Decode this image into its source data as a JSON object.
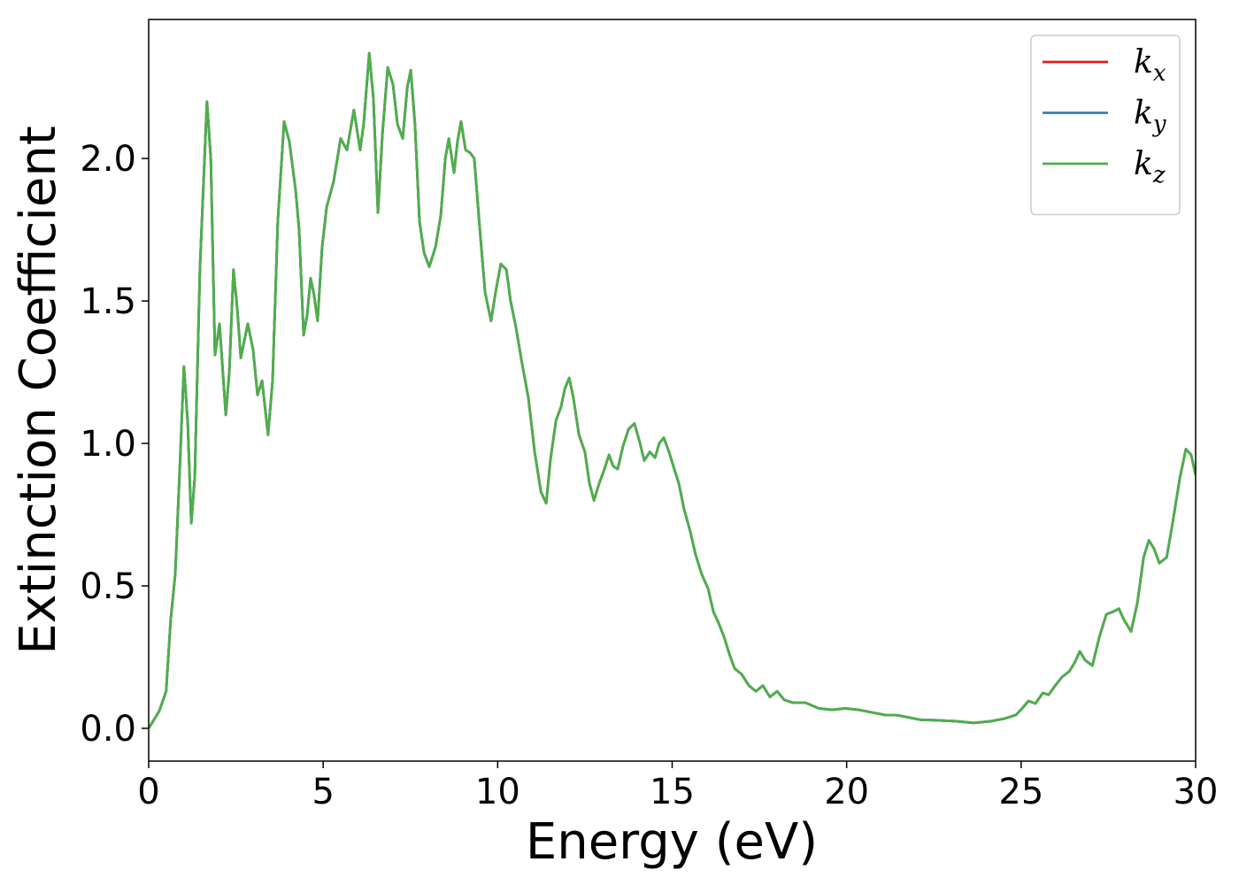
{
  "chart_data": {
    "type": "line",
    "xlabel": "Energy (eV)",
    "ylabel": "Extinction Coefficient",
    "xlim": [
      0,
      30
    ],
    "ylim": [
      -0.115,
      2.488
    ],
    "xticks": [
      0,
      5,
      10,
      15,
      20,
      25,
      30
    ],
    "yticks": [
      {
        "value": 0,
        "label": "0.0"
      },
      0.5,
      {
        "value": 1,
        "label": "1.0"
      },
      1.5,
      {
        "value": 2,
        "label": "2.0"
      }
    ],
    "legend": "upper right",
    "grid": false,
    "x": [
      0,
      0.3,
      0.5,
      0.63,
      0.76,
      0.89,
      1.01,
      1.12,
      1.22,
      1.32,
      1.47,
      1.67,
      1.78,
      1.9,
      2.03,
      2.21,
      2.31,
      2.43,
      2.54,
      2.64,
      2.84,
      2.99,
      3.12,
      3.25,
      3.42,
      3.55,
      3.7,
      3.88,
      4.03,
      4.21,
      4.31,
      4.44,
      4.54,
      4.64,
      4.74,
      4.84,
      4.97,
      5.1,
      5.3,
      5.5,
      5.68,
      5.88,
      6.06,
      6.16,
      6.32,
      6.44,
      6.57,
      6.7,
      6.85,
      7,
      7.13,
      7.28,
      7.41,
      7.51,
      7.63,
      7.76,
      7.89,
      8.04,
      8.22,
      8.37,
      8.5,
      8.6,
      8.75,
      8.85,
      8.95,
      9.08,
      9.21,
      9.33,
      9.49,
      9.64,
      9.81,
      9.94,
      10.09,
      10.25,
      10.37,
      10.52,
      10.7,
      10.88,
      11.06,
      11.24,
      11.39,
      11.51,
      11.67,
      11.82,
      11.92,
      12.05,
      12.17,
      12.33,
      12.5,
      12.63,
      12.76,
      12.91,
      13.06,
      13.19,
      13.31,
      13.44,
      13.59,
      13.75,
      13.92,
      14.08,
      14.2,
      14.36,
      14.51,
      14.63,
      14.76,
      14.91,
      15.06,
      15.19,
      15.34,
      15.52,
      15.67,
      15.85,
      16.03,
      16.18,
      16.33,
      16.49,
      16.64,
      16.79,
      16.99,
      17.2,
      17.4,
      17.6,
      17.8,
      18.01,
      18.21,
      18.46,
      18.82,
      19.2,
      19.58,
      19.96,
      20.34,
      20.72,
      21.1,
      21.4,
      21.71,
      22.12,
      22.62,
      23.13,
      23.64,
      24.14,
      24.52,
      24.85,
      25.03,
      25.21,
      25.41,
      25.62,
      25.79,
      25.97,
      26.17,
      26.38,
      26.53,
      26.68,
      26.83,
      27.04,
      27.24,
      27.44,
      27.65,
      27.8,
      27.95,
      28.15,
      28.33,
      28.51,
      28.66,
      28.81,
      28.96,
      29.17,
      29.34,
      29.55,
      29.72,
      29.87,
      30
    ],
    "series": [
      {
        "name": "kx",
        "color": "#e41a1c",
        "values": [
          0,
          0.06,
          0.13,
          0.38,
          0.54,
          0.91,
          1.27,
          1.07,
          0.72,
          0.88,
          1.62,
          2.2,
          2,
          1.31,
          1.42,
          1.1,
          1.25,
          1.61,
          1.47,
          1.3,
          1.42,
          1.33,
          1.17,
          1.22,
          1.03,
          1.22,
          1.78,
          2.13,
          2.06,
          1.89,
          1.75,
          1.38,
          1.45,
          1.58,
          1.52,
          1.43,
          1.69,
          1.83,
          1.92,
          2.07,
          2.03,
          2.17,
          2.03,
          2.12,
          2.37,
          2.21,
          1.81,
          2.09,
          2.32,
          2.26,
          2.12,
          2.07,
          2.25,
          2.31,
          2.12,
          1.78,
          1.67,
          1.62,
          1.69,
          1.8,
          2,
          2.07,
          1.95,
          2.06,
          2.13,
          2.03,
          2.02,
          2,
          1.75,
          1.53,
          1.43,
          1.53,
          1.63,
          1.61,
          1.5,
          1.41,
          1.28,
          1.16,
          0.97,
          0.83,
          0.79,
          0.94,
          1.08,
          1.13,
          1.19,
          1.23,
          1.16,
          1.03,
          0.97,
          0.86,
          0.8,
          0.86,
          0.91,
          0.96,
          0.92,
          0.91,
          0.99,
          1.05,
          1.07,
          1,
          0.94,
          0.97,
          0.95,
          1,
          1.02,
          0.97,
          0.91,
          0.86,
          0.77,
          0.69,
          0.61,
          0.54,
          0.49,
          0.41,
          0.37,
          0.32,
          0.26,
          0.21,
          0.19,
          0.15,
          0.13,
          0.15,
          0.11,
          0.13,
          0.1,
          0.09,
          0.09,
          0.07,
          0.065,
          0.07,
          0.065,
          0.056,
          0.047,
          0.047,
          0.04,
          0.03,
          0.028,
          0.025,
          0.019,
          0.025,
          0.034,
          0.047,
          0.07,
          0.096,
          0.087,
          0.124,
          0.118,
          0.149,
          0.18,
          0.2,
          0.23,
          0.27,
          0.24,
          0.22,
          0.32,
          0.4,
          0.41,
          0.42,
          0.38,
          0.34,
          0.44,
          0.6,
          0.66,
          0.63,
          0.58,
          0.6,
          0.72,
          0.88,
          0.98,
          0.96,
          0.89
        ]
      },
      {
        "name": "ky",
        "color": "#377eb8",
        "values": [
          0,
          0.06,
          0.13,
          0.38,
          0.54,
          0.91,
          1.27,
          1.07,
          0.72,
          0.88,
          1.62,
          2.2,
          2,
          1.31,
          1.42,
          1.1,
          1.25,
          1.61,
          1.47,
          1.3,
          1.42,
          1.33,
          1.17,
          1.22,
          1.03,
          1.22,
          1.78,
          2.13,
          2.06,
          1.89,
          1.75,
          1.38,
          1.45,
          1.58,
          1.52,
          1.43,
          1.69,
          1.83,
          1.92,
          2.07,
          2.03,
          2.17,
          2.03,
          2.12,
          2.37,
          2.21,
          1.81,
          2.09,
          2.32,
          2.26,
          2.12,
          2.07,
          2.25,
          2.31,
          2.12,
          1.78,
          1.67,
          1.62,
          1.69,
          1.8,
          2,
          2.07,
          1.95,
          2.06,
          2.13,
          2.03,
          2.02,
          2,
          1.75,
          1.53,
          1.43,
          1.53,
          1.63,
          1.61,
          1.5,
          1.41,
          1.28,
          1.16,
          0.97,
          0.83,
          0.79,
          0.94,
          1.08,
          1.13,
          1.19,
          1.23,
          1.16,
          1.03,
          0.97,
          0.86,
          0.8,
          0.86,
          0.91,
          0.96,
          0.92,
          0.91,
          0.99,
          1.05,
          1.07,
          1,
          0.94,
          0.97,
          0.95,
          1,
          1.02,
          0.97,
          0.91,
          0.86,
          0.77,
          0.69,
          0.61,
          0.54,
          0.49,
          0.41,
          0.37,
          0.32,
          0.26,
          0.21,
          0.19,
          0.15,
          0.13,
          0.15,
          0.11,
          0.13,
          0.1,
          0.09,
          0.09,
          0.07,
          0.065,
          0.07,
          0.065,
          0.056,
          0.047,
          0.047,
          0.04,
          0.03,
          0.028,
          0.025,
          0.019,
          0.025,
          0.034,
          0.047,
          0.07,
          0.096,
          0.087,
          0.124,
          0.118,
          0.149,
          0.18,
          0.2,
          0.23,
          0.27,
          0.24,
          0.22,
          0.32,
          0.4,
          0.41,
          0.42,
          0.38,
          0.34,
          0.44,
          0.6,
          0.66,
          0.63,
          0.58,
          0.6,
          0.72,
          0.88,
          0.98,
          0.96,
          0.89
        ]
      },
      {
        "name": "kz",
        "color": "#4daf4a",
        "values": [
          0,
          0.06,
          0.13,
          0.38,
          0.54,
          0.91,
          1.27,
          1.07,
          0.72,
          0.88,
          1.62,
          2.2,
          2,
          1.31,
          1.42,
          1.1,
          1.25,
          1.61,
          1.47,
          1.3,
          1.42,
          1.33,
          1.17,
          1.22,
          1.03,
          1.22,
          1.78,
          2.13,
          2.06,
          1.89,
          1.75,
          1.38,
          1.45,
          1.58,
          1.52,
          1.43,
          1.69,
          1.83,
          1.92,
          2.07,
          2.03,
          2.17,
          2.03,
          2.12,
          2.37,
          2.21,
          1.81,
          2.09,
          2.32,
          2.26,
          2.12,
          2.07,
          2.25,
          2.31,
          2.12,
          1.78,
          1.67,
          1.62,
          1.69,
          1.8,
          2,
          2.07,
          1.95,
          2.06,
          2.13,
          2.03,
          2.02,
          2,
          1.75,
          1.53,
          1.43,
          1.53,
          1.63,
          1.61,
          1.5,
          1.41,
          1.28,
          1.16,
          0.97,
          0.83,
          0.79,
          0.94,
          1.08,
          1.13,
          1.19,
          1.23,
          1.16,
          1.03,
          0.97,
          0.86,
          0.8,
          0.86,
          0.91,
          0.96,
          0.92,
          0.91,
          0.99,
          1.05,
          1.07,
          1,
          0.94,
          0.97,
          0.95,
          1,
          1.02,
          0.97,
          0.91,
          0.86,
          0.77,
          0.69,
          0.61,
          0.54,
          0.49,
          0.41,
          0.37,
          0.32,
          0.26,
          0.21,
          0.19,
          0.15,
          0.13,
          0.15,
          0.11,
          0.13,
          0.1,
          0.09,
          0.09,
          0.07,
          0.065,
          0.07,
          0.065,
          0.056,
          0.047,
          0.047,
          0.04,
          0.03,
          0.028,
          0.025,
          0.019,
          0.025,
          0.034,
          0.047,
          0.07,
          0.096,
          0.087,
          0.124,
          0.118,
          0.149,
          0.18,
          0.2,
          0.23,
          0.27,
          0.24,
          0.22,
          0.32,
          0.4,
          0.41,
          0.42,
          0.38,
          0.34,
          0.44,
          0.6,
          0.66,
          0.63,
          0.58,
          0.6,
          0.72,
          0.88,
          0.98,
          0.96,
          0.89
        ]
      }
    ]
  }
}
